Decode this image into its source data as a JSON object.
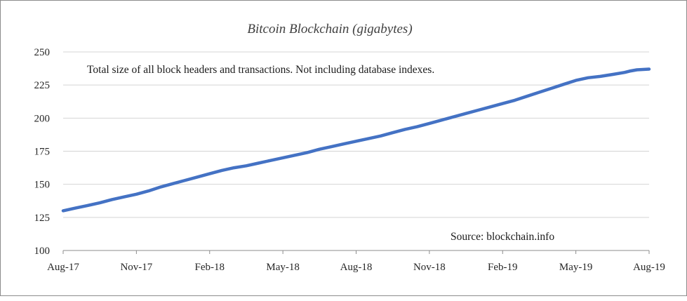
{
  "chart_data": {
    "type": "line",
    "title": "Bitcoin Blockchain (gigabytes)",
    "annotation": "Total size of all block headers and transactions. Not including database indexes.",
    "source": "Source: blockchain.info",
    "xlabel": "",
    "ylabel": "",
    "ylim": [
      100,
      250
    ],
    "y_ticks": [
      "100",
      "125",
      "150",
      "175",
      "200",
      "225",
      "250"
    ],
    "x_ticks": [
      "Aug-17",
      "Nov-17",
      "Feb-18",
      "May-18",
      "Aug-18",
      "Nov-18",
      "Feb-19",
      "May-19",
      "Aug-19"
    ],
    "grid": true,
    "legend": "none",
    "series": [
      {
        "color": "#4472c4",
        "x": [
          0,
          0.5,
          1,
          1.5,
          2,
          2.5,
          3,
          3.5,
          4,
          4.5,
          5,
          5.5,
          6,
          6.5,
          7,
          7.5,
          8,
          8.5,
          9,
          9.5,
          10,
          10.5,
          11,
          11.5,
          12,
          12.5,
          13,
          13.5,
          14,
          14.5,
          15,
          15.5,
          16,
          16.5,
          17,
          17.5,
          18,
          18.5,
          19,
          19.5,
          20,
          20.5,
          21,
          21.5,
          22,
          22.5,
          23,
          23.2,
          23.5,
          24
        ],
        "values": [
          130,
          132,
          134,
          136,
          138.5,
          140.5,
          142.5,
          145,
          148,
          150.5,
          153,
          155.5,
          158,
          160.5,
          162.5,
          164,
          166,
          168,
          170,
          172,
          174,
          176.5,
          178.5,
          180.5,
          182.5,
          184.5,
          186.5,
          189,
          191.5,
          193.5,
          196,
          198.5,
          201,
          203.5,
          206,
          208.5,
          211,
          213.5,
          216.5,
          219.5,
          222.5,
          225.5,
          228.5,
          230.5,
          231.5,
          233,
          234.5,
          235.5,
          236.5,
          237
        ]
      }
    ]
  }
}
